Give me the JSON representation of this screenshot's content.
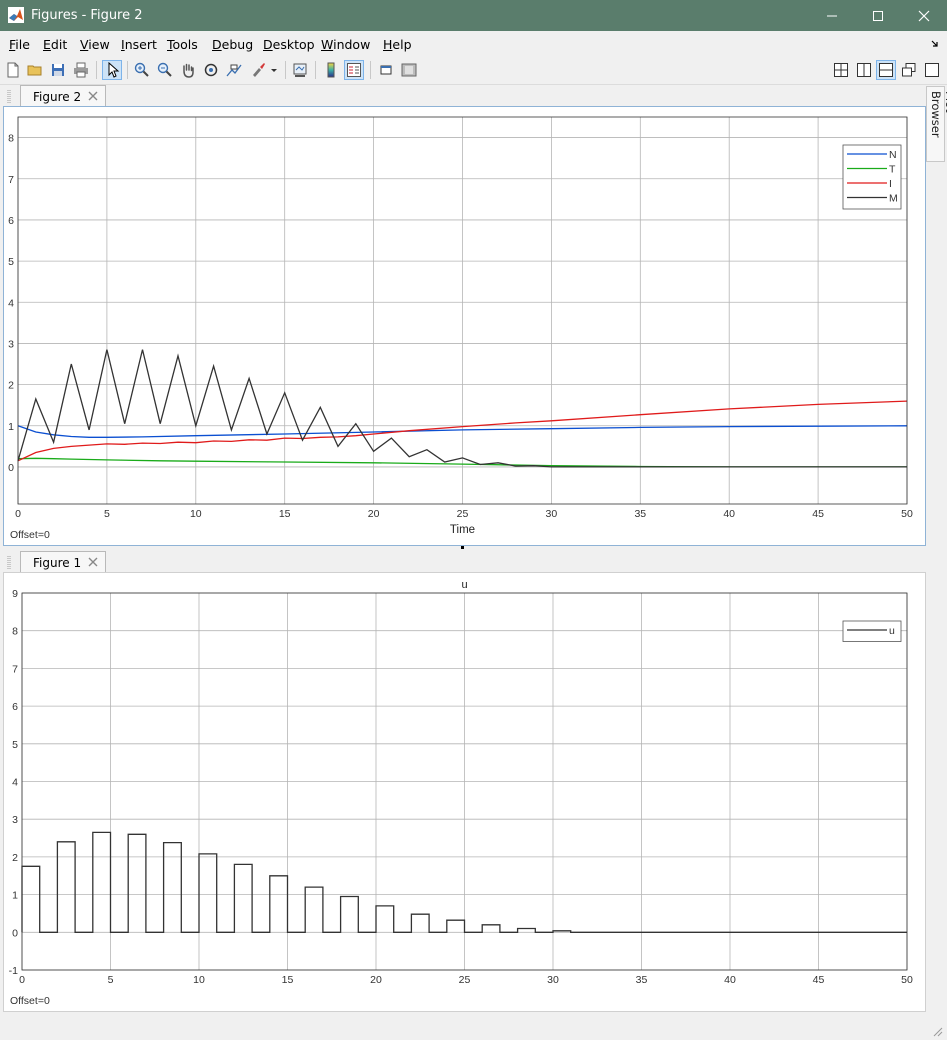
{
  "window": {
    "title": "Figures - Figure 2"
  },
  "menu": [
    "File",
    "Edit",
    "View",
    "Insert",
    "Tools",
    "Debug",
    "Desktop",
    "Window",
    "Help"
  ],
  "side_tab": "Plot Browser",
  "figures": [
    {
      "tab": "Figure 2",
      "offset": "Offset=0"
    },
    {
      "tab": "Figure 1",
      "offset": "Offset=0"
    }
  ],
  "chart_data": [
    {
      "type": "line",
      "title": "",
      "xlabel": "Time",
      "ylabel": "",
      "xlim": [
        0,
        50
      ],
      "ylim": [
        -0.9,
        8.5
      ],
      "xticks": [
        0,
        5,
        10,
        15,
        20,
        25,
        30,
        35,
        40,
        45,
        50
      ],
      "yticks": [
        0,
        1,
        2,
        3,
        4,
        5,
        6,
        7,
        8
      ],
      "grid": true,
      "legend": "top-right",
      "series": [
        {
          "name": "N",
          "color": "#0b4fd1",
          "x": [
            0,
            1,
            2,
            3,
            4,
            5,
            7,
            10,
            15,
            20,
            25,
            30,
            35,
            40,
            45,
            50
          ],
          "y": [
            1.0,
            0.85,
            0.78,
            0.74,
            0.72,
            0.72,
            0.73,
            0.76,
            0.8,
            0.85,
            0.9,
            0.93,
            0.96,
            0.98,
            0.99,
            1.0
          ]
        },
        {
          "name": "T",
          "color": "#1aab1a",
          "x": [
            0,
            1,
            2,
            3,
            5,
            8,
            10,
            15,
            20,
            25,
            30,
            35,
            40,
            45,
            50
          ],
          "y": [
            0.2,
            0.21,
            0.2,
            0.19,
            0.17,
            0.15,
            0.14,
            0.12,
            0.1,
            0.07,
            0.03,
            0.01,
            0.0,
            0.0,
            0.0
          ]
        },
        {
          "name": "I",
          "color": "#e01b1b",
          "x": [
            0,
            1,
            2,
            3,
            4,
            5,
            6,
            7,
            8,
            9,
            10,
            11,
            12,
            13,
            14,
            15,
            16,
            17,
            18,
            19,
            20,
            22,
            25,
            28,
            30,
            35,
            40,
            45,
            50
          ],
          "y": [
            0.15,
            0.35,
            0.45,
            0.5,
            0.53,
            0.56,
            0.55,
            0.58,
            0.57,
            0.6,
            0.59,
            0.63,
            0.62,
            0.66,
            0.65,
            0.7,
            0.69,
            0.72,
            0.73,
            0.76,
            0.8,
            0.88,
            0.98,
            1.07,
            1.12,
            1.27,
            1.41,
            1.52,
            1.6
          ]
        },
        {
          "name": "M",
          "color": "#333333",
          "x": [
            0,
            1,
            2,
            3,
            4,
            5,
            6,
            7,
            8,
            9,
            10,
            11,
            12,
            13,
            14,
            15,
            16,
            17,
            18,
            19,
            20,
            21,
            22,
            23,
            24,
            25,
            26,
            27,
            28,
            29,
            30,
            32,
            35,
            40,
            45,
            50
          ],
          "y": [
            0.15,
            1.65,
            0.6,
            2.5,
            0.9,
            2.85,
            1.05,
            2.85,
            1.05,
            2.7,
            1.0,
            2.45,
            0.9,
            2.15,
            0.8,
            1.8,
            0.65,
            1.45,
            0.5,
            1.05,
            0.38,
            0.7,
            0.25,
            0.42,
            0.12,
            0.22,
            0.06,
            0.1,
            0.02,
            0.03,
            0.0,
            0.0,
            0.0,
            0.0,
            0.0,
            0.0
          ]
        }
      ]
    },
    {
      "type": "line",
      "title": "u",
      "xlabel": "",
      "ylabel": "",
      "xlim": [
        0,
        50
      ],
      "ylim": [
        -1,
        9
      ],
      "xticks": [
        0,
        5,
        10,
        15,
        20,
        25,
        30,
        35,
        40,
        45,
        50
      ],
      "yticks": [
        -1,
        0,
        1,
        2,
        3,
        4,
        5,
        6,
        7,
        8,
        9
      ],
      "grid": true,
      "legend": "top-right",
      "series": [
        {
          "name": "u",
          "color": "#333333",
          "pulse_period": 2,
          "pulse_width": 1,
          "pulse_heights": [
            1.75,
            2.4,
            2.65,
            2.6,
            2.38,
            2.08,
            1.8,
            1.5,
            1.2,
            0.95,
            0.7,
            0.48,
            0.32,
            0.2,
            0.1,
            0.04,
            0,
            0,
            0,
            0,
            0,
            0,
            0,
            0,
            0
          ]
        }
      ]
    }
  ]
}
